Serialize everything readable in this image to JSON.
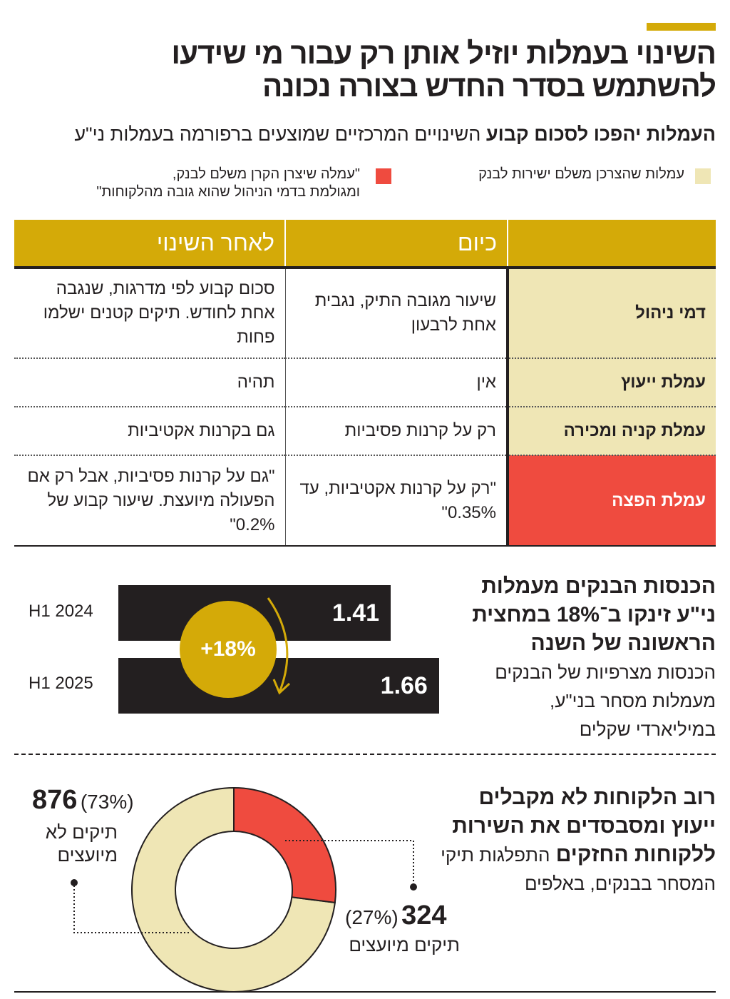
{
  "header": {
    "title_line1": "השינוי בעמלות יוזיל אותן רק עבור מי שידעו",
    "title_line2": "להשתמש בסדר החדש בצורה נכונה",
    "subtitle_bold": "העמלות יהפכו לסכום קבוע",
    "subtitle_rest": "השינויים המרכזיים שמוצעים ברפורמה בעמלות ני\"ע"
  },
  "legend": [
    {
      "label": "עמלות שהצרכן משלם ישירות לבנק",
      "color": "#efe6b5"
    },
    {
      "label_line1": "\"עמלה שיצרן הקרן משלם לבנק,",
      "label_line2": "ומגולמת בדמי הניהול שהוא גובה מהלקוחות\"",
      "color": "#ef4b3f"
    }
  ],
  "table": {
    "headers": [
      "",
      "כיום",
      "לאחר השינוי"
    ],
    "rows": [
      {
        "label": "דמי ניהול",
        "today": "שיעור מגובה התיק, נגבית אחת לרבעון",
        "after": "סכום קבוע לפי מדרגות, שנגבה אחת לחודש. תיקים קטנים ישלמו פחות"
      },
      {
        "label": "עמלת ייעוץ",
        "today": "אין",
        "after": "תהיה"
      },
      {
        "label": "עמלת קניה ומכירה",
        "today": "רק על קרנות פסיביות",
        "after": "גם בקרנות אקטיביות"
      },
      {
        "label": "עמלת הפצה",
        "today": "\"רק על קרנות אקטיביות, עד 0.35%\"",
        "after": "\"גם על קרנות פסיביות, אבל רק אם הפעולה מיועצת. שיעור קבוע של 0.2%\""
      }
    ]
  },
  "chart_data": [
    {
      "type": "bar",
      "title_bold": "הכנסות הבנקים מעמלות ני\"ע זינקו ב־18% במחצית הראשונה של השנה",
      "subtitle": "הכנסות מצרפיות של הבנקים מעמלות מסחר בני\"ע, במיליארדי שקלים",
      "categories": [
        "H1 2024",
        "H1 2025"
      ],
      "values": [
        1.41,
        1.66
      ],
      "value_labels": [
        "1.41",
        "1.66"
      ],
      "annotation": "+18%",
      "colors": {
        "bar": "#231f20",
        "badge": "#d4aa08"
      }
    },
    {
      "type": "pie",
      "title_bold": "רוב הלקוחות לא מקבלים ייעוץ ומסבסדים את השירות ללקוחות החזקים",
      "subtitle": "התפלגות תיקי המסחר בבנקים, באלפים",
      "slices": [
        {
          "label": "תיקים מיועצים",
          "value": 324,
          "value_label": "324",
          "percent_label": "(27%)",
          "color": "#ef4b3f"
        },
        {
          "label": "תיקים לא מיועצים",
          "value": 876,
          "value_label": "876",
          "percent_label": "(73%)",
          "color": "#efe6b5"
        }
      ]
    }
  ]
}
